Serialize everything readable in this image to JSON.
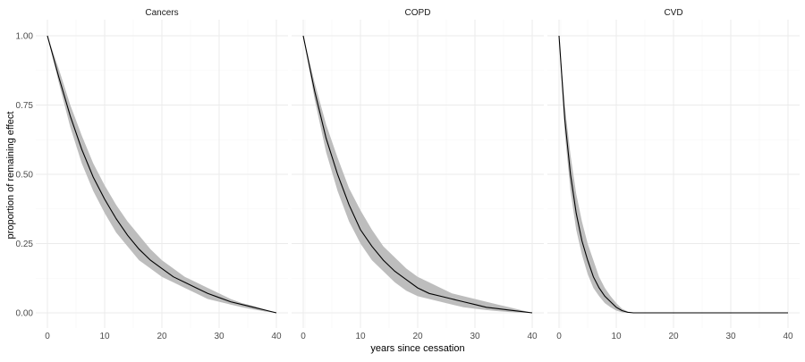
{
  "chart_data": {
    "type": "line",
    "xlabel": "years since cessation",
    "ylabel": "proportion of remaining effect",
    "xlim": [
      0,
      40
    ],
    "ylim": [
      0,
      1
    ],
    "x_ticks": [
      0,
      10,
      20,
      30,
      40
    ],
    "y_ticks": [
      0,
      0.25,
      0.5,
      0.75,
      1
    ],
    "y_tick_labels": [
      "0.00",
      "0.25",
      "0.50",
      "0.75",
      "1.00"
    ],
    "grid": true,
    "colors": {
      "line": "#000000",
      "ribbon": "#bdbdbd",
      "grid_major": "#ebebeb",
      "grid_minor": "#f5f5f5"
    },
    "panels": [
      {
        "title": "Cancers",
        "x": [
          0,
          2,
          4,
          6,
          8,
          10,
          12,
          14,
          16,
          18,
          20,
          22,
          24,
          26,
          28,
          30,
          32,
          34,
          36,
          38,
          40
        ],
        "y": [
          1.0,
          0.85,
          0.71,
          0.59,
          0.49,
          0.41,
          0.34,
          0.28,
          0.23,
          0.19,
          0.16,
          0.13,
          0.11,
          0.09,
          0.07,
          0.055,
          0.04,
          0.03,
          0.02,
          0.01,
          0.0
        ],
        "lower": [
          1.0,
          0.83,
          0.67,
          0.54,
          0.44,
          0.36,
          0.29,
          0.24,
          0.19,
          0.16,
          0.13,
          0.11,
          0.09,
          0.07,
          0.05,
          0.04,
          0.03,
          0.02,
          0.012,
          0.005,
          0.0
        ],
        "upper": [
          1.0,
          0.88,
          0.75,
          0.64,
          0.54,
          0.46,
          0.39,
          0.33,
          0.28,
          0.23,
          0.19,
          0.16,
          0.13,
          0.11,
          0.09,
          0.07,
          0.05,
          0.035,
          0.025,
          0.012,
          0.0
        ]
      },
      {
        "title": "COPD",
        "x": [
          0,
          2,
          4,
          6,
          8,
          10,
          12,
          14,
          16,
          18,
          20,
          22,
          24,
          26,
          28,
          30,
          32,
          34,
          36,
          38,
          40
        ],
        "y": [
          1.0,
          0.8,
          0.63,
          0.5,
          0.39,
          0.3,
          0.24,
          0.19,
          0.15,
          0.12,
          0.09,
          0.07,
          0.06,
          0.05,
          0.04,
          0.03,
          0.02,
          0.015,
          0.01,
          0.005,
          0.0
        ],
        "lower": [
          1.0,
          0.77,
          0.58,
          0.44,
          0.33,
          0.25,
          0.19,
          0.15,
          0.11,
          0.08,
          0.06,
          0.05,
          0.04,
          0.03,
          0.02,
          0.015,
          0.01,
          0.006,
          0.003,
          0.001,
          0.0
        ],
        "upper": [
          1.0,
          0.83,
          0.68,
          0.56,
          0.45,
          0.37,
          0.3,
          0.24,
          0.2,
          0.16,
          0.13,
          0.11,
          0.09,
          0.07,
          0.06,
          0.05,
          0.04,
          0.03,
          0.02,
          0.01,
          0.0
        ]
      },
      {
        "title": "CVD",
        "x": [
          0,
          1,
          2,
          3,
          4,
          5,
          6,
          7,
          8,
          9,
          10,
          11,
          12,
          13,
          14,
          16,
          20,
          25,
          30,
          35,
          40
        ],
        "y": [
          1.0,
          0.7,
          0.5,
          0.36,
          0.26,
          0.19,
          0.13,
          0.09,
          0.06,
          0.04,
          0.02,
          0.008,
          0.002,
          0.0,
          0.0,
          0.0,
          0.0,
          0.0,
          0.0,
          0.0,
          0.0
        ],
        "lower": [
          1.0,
          0.65,
          0.44,
          0.3,
          0.21,
          0.14,
          0.09,
          0.06,
          0.035,
          0.02,
          0.008,
          0.002,
          0.0,
          0.0,
          0.0,
          0.0,
          0.0,
          0.0,
          0.0,
          0.0,
          0.0
        ],
        "upper": [
          1.0,
          0.75,
          0.57,
          0.43,
          0.33,
          0.25,
          0.19,
          0.13,
          0.09,
          0.06,
          0.035,
          0.015,
          0.005,
          0.001,
          0.0,
          0.0,
          0.0,
          0.0,
          0.0,
          0.0,
          0.0
        ]
      }
    ]
  }
}
